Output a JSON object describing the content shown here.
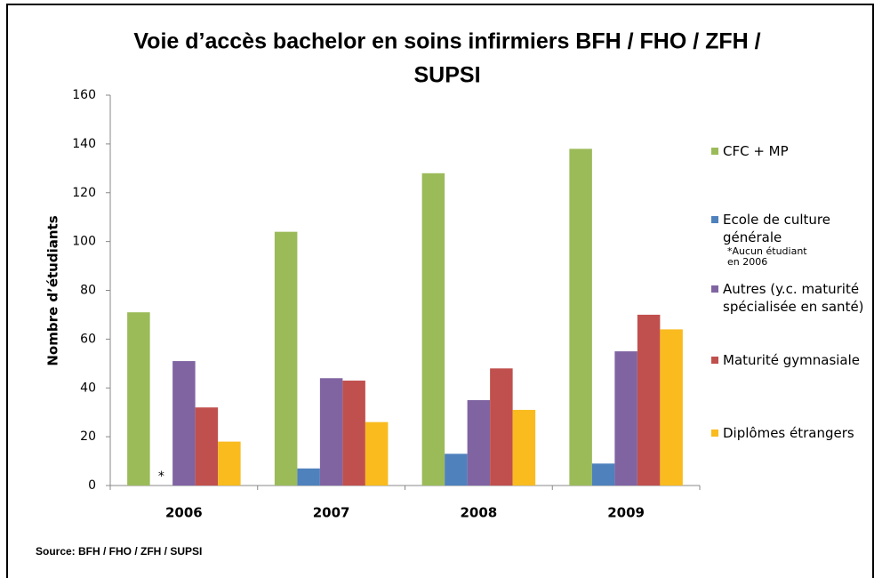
{
  "chart_data": {
    "type": "bar",
    "title": [
      "Voie d’accès bachelor en soins infirmiers BFH / FHO / ZFH /",
      "SUPSI"
    ],
    "y_label": "Nombre d’étudiants",
    "categories": [
      "2006",
      "2007",
      "2008",
      "2009"
    ],
    "series": [
      {
        "name": "CFC + MP",
        "color": "#9bbb59",
        "values": [
          71,
          104,
          128,
          138
        ]
      },
      {
        "name": "Ecole de culture générale",
        "color": "#4f81bd",
        "values": [
          0,
          7,
          13,
          9
        ]
      },
      {
        "name": "Autres (y.c. maturité spécialisée en santé)",
        "color": "#8064a2",
        "values": [
          51,
          44,
          35,
          55
        ]
      },
      {
        "name": "Maturité gymnasiale",
        "color": "#c0504d",
        "values": [
          32,
          43,
          48,
          70
        ]
      },
      {
        "name": "Diplômes étrangers",
        "color": "#f9bb1e",
        "values": [
          18,
          26,
          31,
          64
        ]
      }
    ],
    "annotation": "*",
    "legend_note": [
      "*Aucun étudiant",
      "en 2006"
    ],
    "ylim": [
      0,
      160
    ],
    "yticks": [
      0,
      20,
      40,
      60,
      80,
      100,
      120,
      140,
      160
    ],
    "grid": false,
    "legend": "right",
    "source": "Source: BFH / FHO / ZFH / SUPSI"
  }
}
